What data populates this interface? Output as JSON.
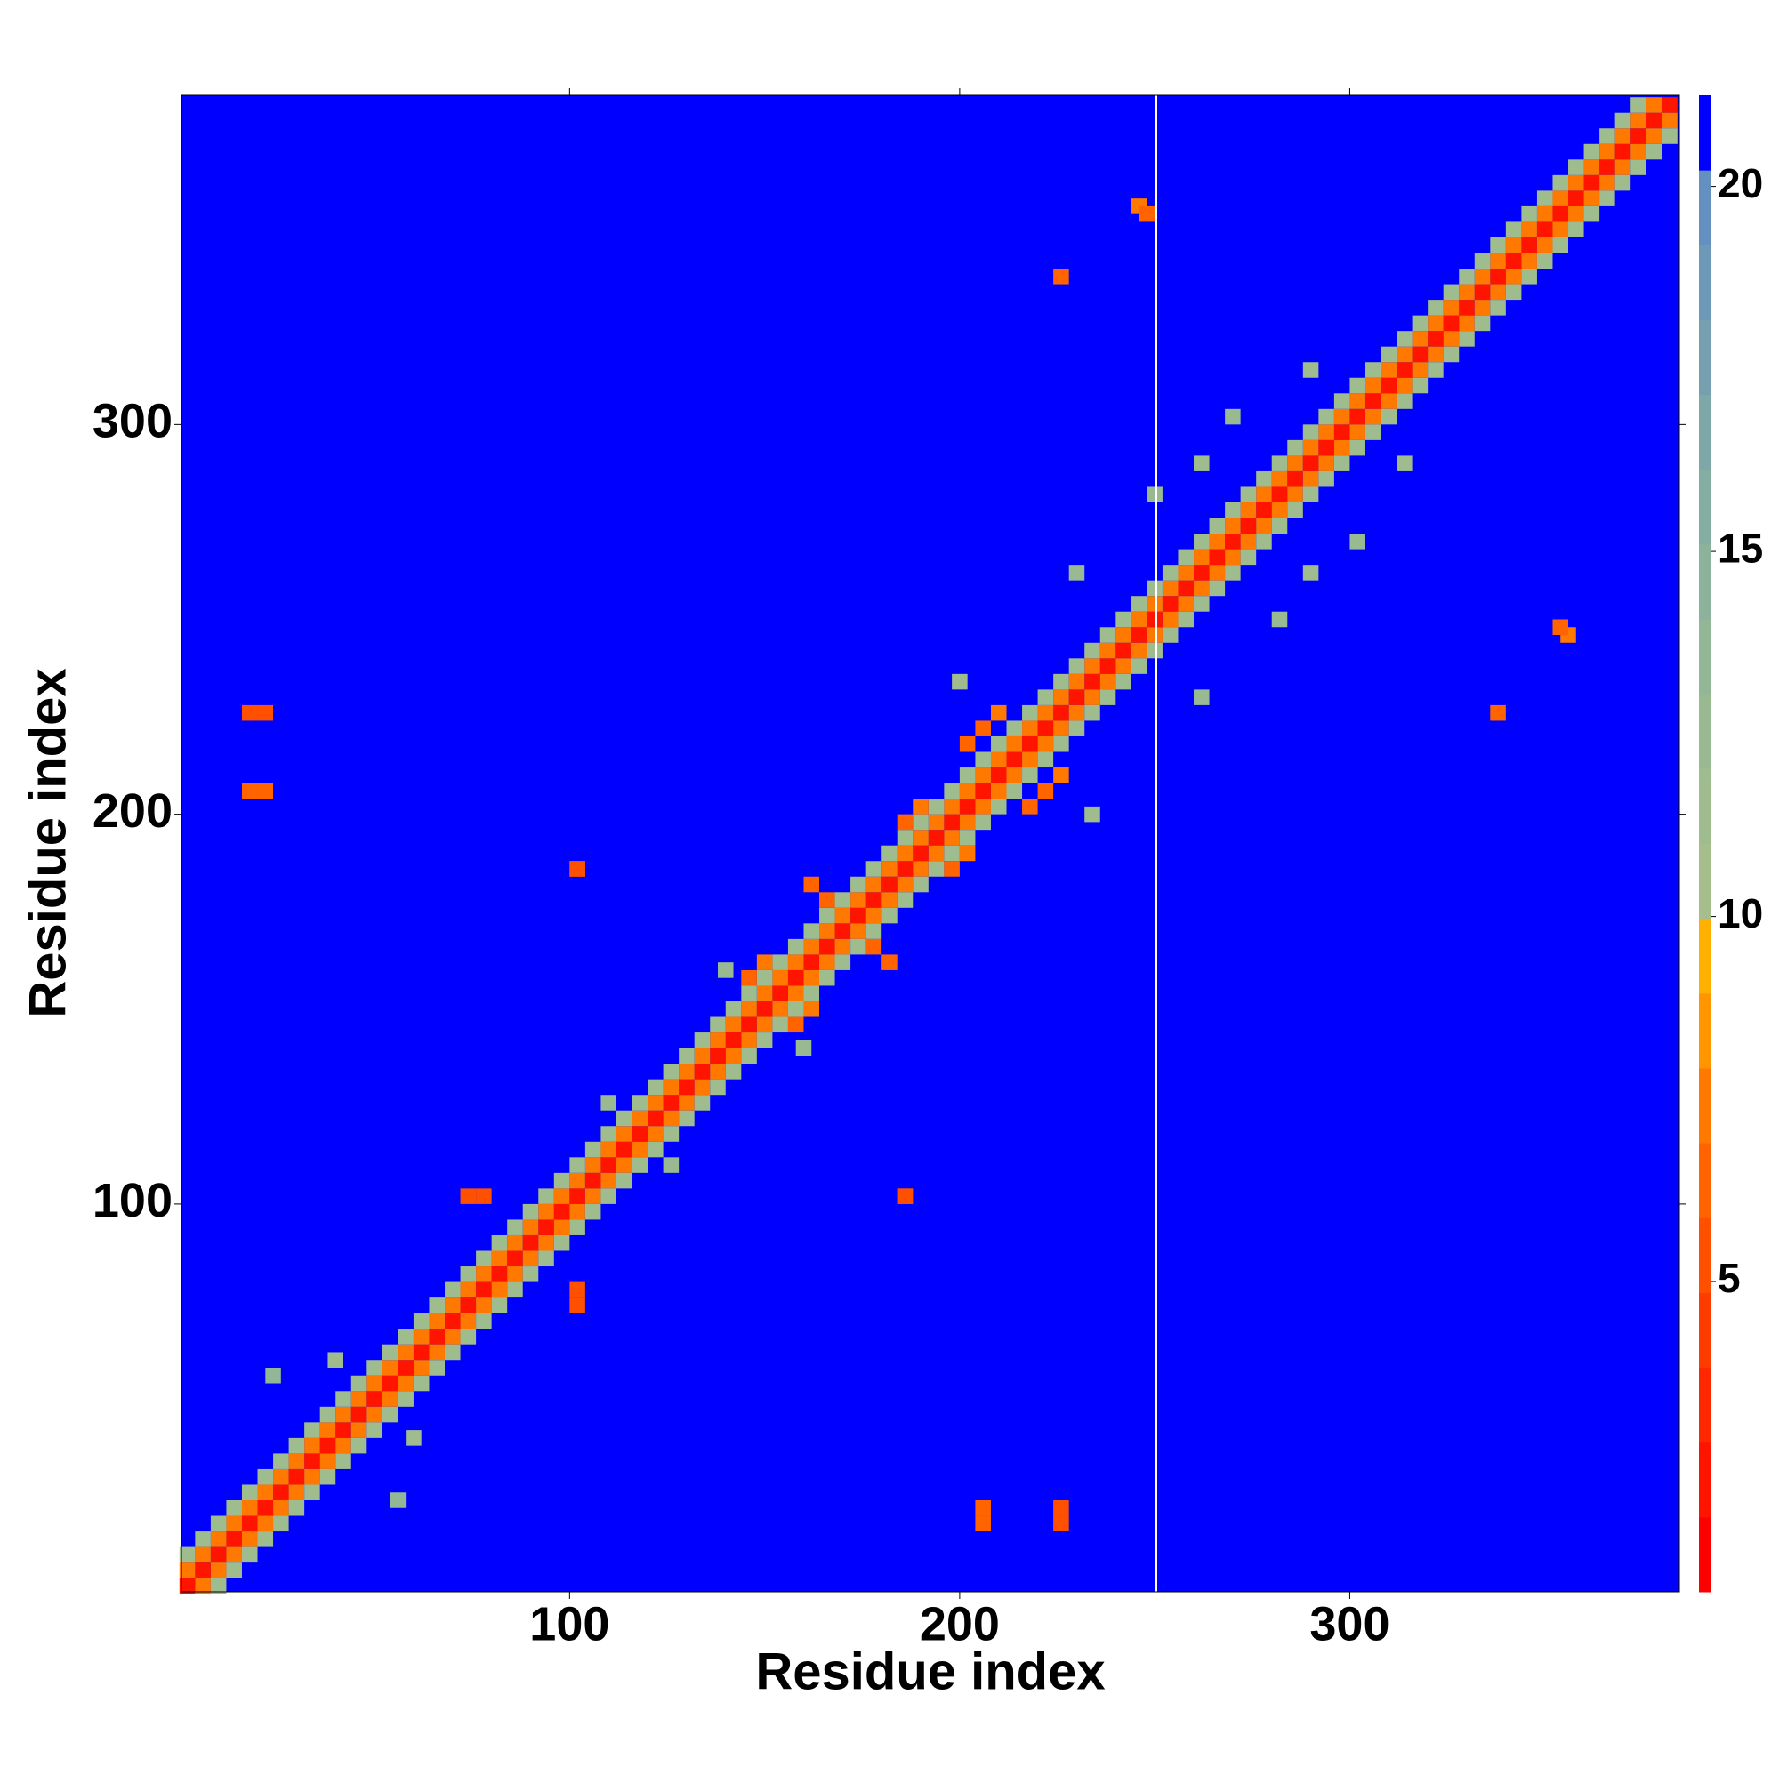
{
  "chart_data": {
    "type": "heatmap",
    "xlabel": "Residue index",
    "ylabel": "Residue index",
    "xlim": [
      0.5,
      384.5
    ],
    "ylim": [
      0.5,
      384.5
    ],
    "xticks": [
      100,
      200,
      300
    ],
    "yticks": [
      100,
      200,
      300
    ],
    "zlim": [
      0.75,
      21.25
    ],
    "zticks": [
      5,
      10,
      15,
      20
    ],
    "colors": [
      "#ff0000",
      "#ff1400",
      "#ff2800",
      "#ff3c00",
      "#ff5000",
      "#ff6400",
      "#ff7800",
      "#ff9600",
      "#ffb000",
      "#a5be8c",
      "#9fbc8e",
      "#99b992",
      "#93b696",
      "#8cb29c",
      "#85aea2",
      "#7ea8a8",
      "#76a0b0",
      "#6d98b8",
      "#6490c0",
      "#0000ff"
    ],
    "x": [
      2,
      6,
      10,
      14,
      18,
      22,
      26,
      30,
      34,
      38,
      42,
      46,
      50,
      54,
      58,
      62,
      66,
      70,
      74,
      78,
      82,
      86,
      90,
      94,
      98,
      102,
      106,
      110,
      114,
      118,
      122,
      126,
      130,
      134,
      138,
      142,
      146,
      150,
      154,
      158,
      162,
      166,
      170,
      174,
      178,
      182,
      186,
      190,
      194,
      198,
      202,
      206,
      210,
      214,
      218,
      222,
      226,
      230,
      234,
      238,
      242,
      246,
      250,
      254,
      258,
      262,
      266,
      270,
      274,
      278,
      282,
      286,
      290,
      294,
      298,
      302,
      306,
      310,
      314,
      318,
      322,
      326,
      330,
      334,
      338,
      342,
      346,
      350,
      354,
      358,
      362,
      366,
      370,
      374,
      378,
      382,
      2,
      6,
      10,
      14,
      18,
      22,
      26,
      30,
      34,
      38,
      42,
      46,
      50,
      54,
      58,
      62,
      66,
      70,
      74,
      78,
      82,
      86,
      90,
      94,
      98,
      102,
      106,
      110,
      114,
      118,
      122,
      126,
      130,
      134,
      138,
      142,
      146,
      150,
      154,
      158,
      162,
      166,
      170,
      174,
      178,
      182,
      186,
      190,
      194,
      198,
      202,
      206,
      210,
      214,
      218,
      222,
      226,
      230,
      234,
      238,
      242,
      246,
      250,
      254,
      258,
      262,
      266,
      270,
      274,
      278,
      282,
      286,
      290,
      294,
      298,
      302,
      306,
      310,
      314,
      318,
      322,
      326,
      330,
      334,
      338,
      342,
      346,
      350,
      354,
      358,
      362,
      366,
      370,
      374,
      378,
      2,
      6,
      10,
      14,
      18,
      22,
      26,
      30,
      34,
      38,
      42,
      46,
      50,
      54,
      58,
      62,
      66,
      70,
      74,
      78,
      82,
      86,
      90,
      94,
      98,
      102,
      106,
      110,
      114,
      118,
      122,
      126,
      130,
      134,
      138,
      142,
      146,
      150,
      154,
      158,
      162,
      166,
      170,
      174,
      178,
      182,
      186,
      190,
      194,
      198,
      202,
      206,
      210,
      214,
      218,
      222,
      226,
      230,
      234,
      238,
      242,
      246,
      250,
      254,
      258,
      262,
      266,
      270,
      274,
      278,
      282,
      286,
      290,
      294,
      298,
      302,
      306,
      310,
      314,
      318,
      322,
      326,
      330,
      334,
      338,
      342,
      346,
      350,
      354,
      358,
      362,
      366,
      370,
      374,
      162,
      178,
      186,
      190,
      206,
      210,
      202,
      146,
      150,
      22,
      22,
      102,
      78,
      102,
      186,
      226,
      246,
      354,
      206,
      226,
      40,
      250,
      270,
      230,
      200,
      110,
      140,
      24,
      290,
      262
    ],
    "y": [
      2,
      6,
      10,
      14,
      18,
      22,
      26,
      30,
      34,
      38,
      42,
      46,
      50,
      54,
      58,
      62,
      66,
      70,
      74,
      78,
      82,
      86,
      90,
      94,
      98,
      102,
      106,
      110,
      114,
      118,
      122,
      126,
      130,
      134,
      138,
      142,
      146,
      150,
      154,
      158,
      162,
      166,
      170,
      174,
      178,
      182,
      186,
      190,
      194,
      198,
      202,
      206,
      210,
      214,
      218,
      222,
      226,
      230,
      234,
      238,
      242,
      246,
      250,
      254,
      258,
      262,
      266,
      270,
      274,
      278,
      282,
      286,
      290,
      294,
      298,
      302,
      306,
      310,
      314,
      318,
      322,
      326,
      330,
      334,
      338,
      342,
      346,
      350,
      354,
      358,
      362,
      366,
      370,
      374,
      378,
      382,
      6,
      10,
      14,
      18,
      22,
      26,
      30,
      34,
      38,
      42,
      46,
      50,
      54,
      58,
      62,
      66,
      70,
      74,
      78,
      82,
      86,
      90,
      94,
      98,
      102,
      106,
      110,
      114,
      118,
      122,
      126,
      130,
      134,
      138,
      142,
      146,
      150,
      154,
      158,
      162,
      166,
      170,
      174,
      178,
      182,
      186,
      190,
      194,
      198,
      202,
      206,
      210,
      214,
      218,
      222,
      226,
      230,
      234,
      238,
      242,
      246,
      250,
      254,
      258,
      262,
      266,
      270,
      274,
      278,
      282,
      286,
      290,
      294,
      298,
      302,
      306,
      310,
      314,
      318,
      322,
      326,
      330,
      334,
      338,
      342,
      346,
      350,
      354,
      358,
      362,
      366,
      370,
      374,
      378,
      382,
      10,
      14,
      18,
      22,
      26,
      30,
      34,
      38,
      42,
      46,
      50,
      54,
      58,
      62,
      66,
      70,
      74,
      78,
      82,
      86,
      90,
      94,
      98,
      102,
      106,
      110,
      114,
      118,
      122,
      126,
      130,
      134,
      138,
      142,
      146,
      150,
      154,
      158,
      162,
      166,
      170,
      174,
      178,
      182,
      186,
      190,
      194,
      198,
      202,
      206,
      210,
      214,
      218,
      222,
      226,
      230,
      234,
      238,
      242,
      246,
      250,
      254,
      258,
      262,
      266,
      270,
      274,
      278,
      282,
      286,
      290,
      294,
      298,
      302,
      306,
      310,
      314,
      318,
      322,
      326,
      330,
      334,
      338,
      342,
      346,
      350,
      354,
      358,
      362,
      366,
      370,
      374,
      378,
      382,
      182,
      166,
      198,
      202,
      222,
      226,
      218,
      158,
      162,
      226,
      206,
      186,
      102,
      74,
      102,
      338,
      356,
      248,
      18,
      18,
      60,
      282,
      302,
      262,
      234,
      126,
      160,
      56,
      314,
      290
    ],
    "values": [
      2,
      2,
      2,
      2,
      2,
      2,
      2,
      2,
      2,
      2,
      2,
      2,
      2,
      2,
      2,
      2,
      2,
      2,
      2,
      2,
      2,
      2,
      2,
      2,
      2,
      2,
      2,
      2,
      2,
      2,
      2,
      2,
      2,
      2,
      2,
      2,
      2,
      2,
      2,
      2,
      2,
      2,
      2,
      2,
      2,
      2,
      2,
      2,
      2,
      2,
      2,
      2,
      2,
      2,
      2,
      2,
      2,
      2,
      2,
      2,
      2,
      2,
      2,
      2,
      2,
      2,
      2,
      2,
      2,
      2,
      2,
      2,
      2,
      2,
      2,
      2,
      2,
      2,
      2,
      2,
      2,
      2,
      2,
      2,
      2,
      2,
      2,
      2,
      2,
      2,
      2,
      2,
      2,
      2,
      2,
      2,
      7,
      7,
      7,
      7,
      7,
      7,
      7,
      7,
      7,
      7,
      7,
      7,
      7,
      7,
      7,
      7,
      7,
      7,
      7,
      7,
      7,
      7,
      7,
      7,
      7,
      7,
      7,
      7,
      7,
      7,
      7,
      7,
      7,
      7,
      7,
      7,
      7,
      7,
      7,
      7,
      7,
      7,
      7,
      7,
      7,
      7,
      7,
      7,
      7,
      7,
      7,
      7,
      7,
      7,
      7,
      7,
      7,
      7,
      7,
      7,
      7,
      7,
      7,
      7,
      7,
      7,
      7,
      7,
      7,
      7,
      7,
      7,
      7,
      7,
      7,
      7,
      7,
      7,
      7,
      7,
      7,
      7,
      7,
      7,
      7,
      7,
      7,
      7,
      7,
      7,
      7,
      7,
      7,
      7,
      7,
      12,
      12,
      12,
      12,
      12,
      12,
      12,
      12,
      12,
      12,
      12,
      12,
      12,
      12,
      12,
      12,
      12,
      12,
      12,
      12,
      12,
      12,
      12,
      12,
      12,
      12,
      12,
      12,
      12,
      12,
      12,
      12,
      12,
      12,
      12,
      12,
      12,
      12,
      12,
      12,
      12,
      12,
      12,
      12,
      12,
      12,
      12,
      12,
      12,
      12,
      12,
      12,
      12,
      12,
      12,
      12,
      12,
      12,
      12,
      12,
      12,
      12,
      12,
      12,
      12,
      12,
      12,
      12,
      12,
      12,
      12,
      12,
      12,
      12,
      12,
      12,
      12,
      12,
      12,
      12,
      12,
      12,
      12,
      12,
      12,
      12,
      12,
      12,
      12,
      12,
      12,
      12,
      12,
      12,
      6,
      6,
      6,
      7,
      6,
      7,
      6,
      6,
      7,
      5,
      6,
      6,
      5,
      5,
      5,
      6,
      7,
      6,
      6,
      5,
      12,
      13,
      13,
      13,
      12,
      13,
      13,
      14,
      12,
      12
    ]
  }
}
